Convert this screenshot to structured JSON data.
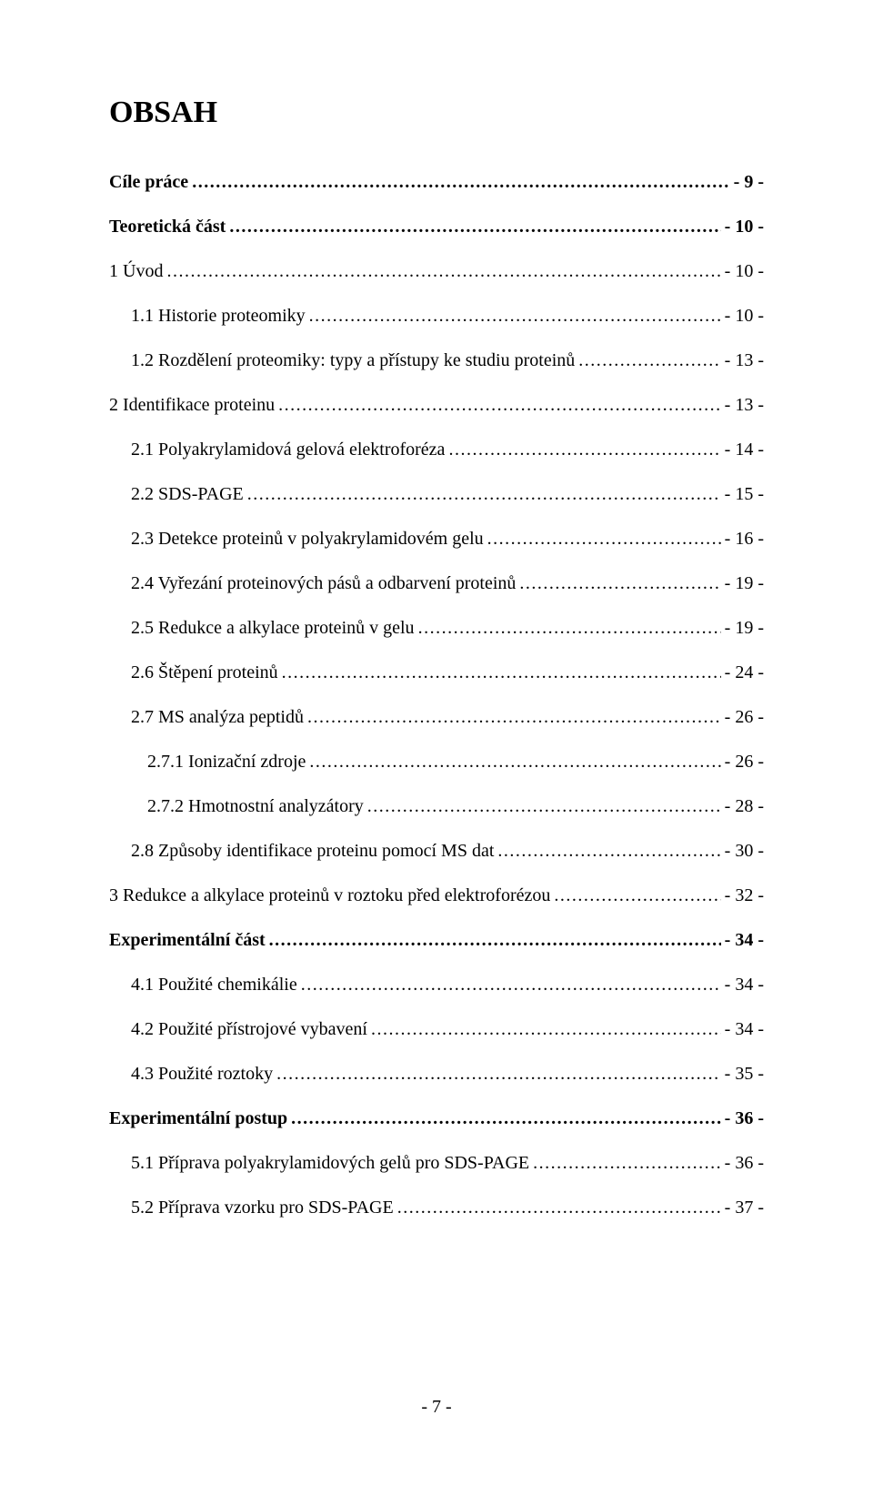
{
  "title": "OBSAH",
  "footer": "- 7 -",
  "toc": [
    {
      "label": "Cíle práce",
      "page": "- 9 -",
      "bold": true,
      "indent": 0
    },
    {
      "label": "Teoretická část",
      "page": "- 10 -",
      "bold": true,
      "indent": 0
    },
    {
      "label": "1  Úvod",
      "page": "- 10 -",
      "bold": false,
      "indent": 0
    },
    {
      "label": "1.1  Historie proteomiky",
      "page": "- 10 -",
      "bold": false,
      "indent": 1
    },
    {
      "label": "1.2  Rozdělení proteomiky: typy a přístupy ke studiu proteinů",
      "page": "- 13 -",
      "bold": false,
      "indent": 1
    },
    {
      "label": "2  Identifikace proteinu",
      "page": "- 13 -",
      "bold": false,
      "indent": 0
    },
    {
      "label": "2.1  Polyakrylamidová gelová elektroforéza",
      "page": "- 14 -",
      "bold": false,
      "indent": 1
    },
    {
      "label": "2.2  SDS-PAGE",
      "page": "- 15 -",
      "bold": false,
      "indent": 1
    },
    {
      "label": "2.3  Detekce proteinů v polyakrylamidovém gelu",
      "page": "- 16 -",
      "bold": false,
      "indent": 1
    },
    {
      "label": "2.4  Vyřezání proteinových pásů a odbarvení proteinů",
      "page": "- 19 -",
      "bold": false,
      "indent": 1
    },
    {
      "label": "2.5  Redukce a alkylace proteinů v gelu",
      "page": "- 19 -",
      "bold": false,
      "indent": 1
    },
    {
      "label": "2.6  Štěpení proteinů",
      "page": "- 24 -",
      "bold": false,
      "indent": 1
    },
    {
      "label": "2.7  MS analýza peptidů",
      "page": "- 26 -",
      "bold": false,
      "indent": 1
    },
    {
      "label": "2.7.1  Ionizační zdroje",
      "page": "- 26 -",
      "bold": false,
      "indent": 2
    },
    {
      "label": "2.7.2  Hmotnostní analyzátory",
      "page": "- 28 -",
      "bold": false,
      "indent": 2
    },
    {
      "label": "2.8  Způsoby identifikace proteinu pomocí  MS dat",
      "page": "- 30 -",
      "bold": false,
      "indent": 1
    },
    {
      "label": "3  Redukce a alkylace proteinů v roztoku před elektroforézou",
      "page": "- 32 -",
      "bold": false,
      "indent": 0
    },
    {
      "label": "Experimentální část",
      "page": "- 34 -",
      "bold": true,
      "indent": 0
    },
    {
      "label": "4.1  Použité chemikálie",
      "page": "- 34 -",
      "bold": false,
      "indent": 1
    },
    {
      "label": "4.2  Použité přístrojové vybavení",
      "page": "- 34 -",
      "bold": false,
      "indent": 1
    },
    {
      "label": "4.3  Použité roztoky",
      "page": "- 35 -",
      "bold": false,
      "indent": 1
    },
    {
      "label": "Experimentální postup",
      "page": "- 36 -",
      "bold": true,
      "indent": 0
    },
    {
      "label": "5.1  Příprava polyakrylamidových gelů pro SDS-PAGE",
      "page": "- 36 -",
      "bold": false,
      "indent": 1
    },
    {
      "label": "5.2  Příprava vzorku pro SDS-PAGE",
      "page": "- 37 -",
      "bold": false,
      "indent": 1
    }
  ]
}
